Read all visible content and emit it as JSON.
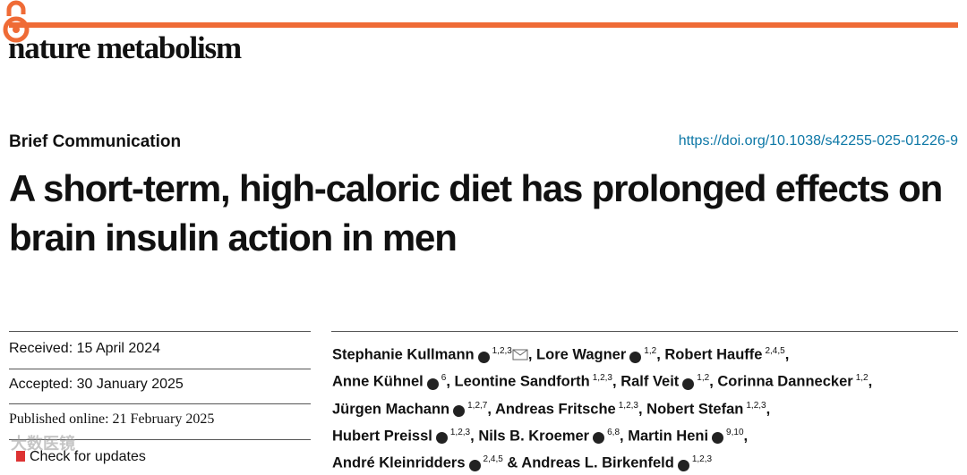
{
  "header": {
    "journal": "nature metabolism"
  },
  "article": {
    "type": "Brief Communication",
    "doi": "https://doi.org/10.1038/s42255-025-01226-9",
    "title": "A short-term, high-caloric diet has prolonged effects on brain insulin action in men"
  },
  "dates": {
    "received": "Received: 15 April 2024",
    "accepted": "Accepted: 30 January 2025",
    "published": "Published online: 21 February 2025"
  },
  "updates": "Check for updates",
  "watermark": "大数医镜",
  "authors": {
    "lines": [
      [
        {
          "name": "Stephanie Kullmann",
          "orcid": true,
          "affiliations": "1,2,3",
          "email": true,
          "after": ","
        },
        {
          "name": "Lore Wagner",
          "orcid": true,
          "affiliations": "1,2",
          "after": ","
        },
        {
          "name": "Robert Hauffe",
          "orcid": false,
          "affiliations": "2,4,5",
          "after": ","
        }
      ],
      [
        {
          "name": "Anne Kühnel",
          "orcid": true,
          "affiliations": "6",
          "after": ","
        },
        {
          "name": "Leontine Sandforth",
          "orcid": false,
          "affiliations": "1,2,3",
          "after": ","
        },
        {
          "name": "Ralf Veit",
          "orcid": true,
          "affiliations": "1,2",
          "after": ","
        },
        {
          "name": "Corinna Dannecker",
          "orcid": false,
          "affiliations": "1,2",
          "after": ","
        }
      ],
      [
        {
          "name": "Jürgen Machann",
          "orcid": true,
          "affiliations": "1,2,7",
          "after": ","
        },
        {
          "name": "Andreas Fritsche",
          "orcid": false,
          "affiliations": "1,2,3",
          "after": ","
        },
        {
          "name": "Nobert Stefan",
          "orcid": false,
          "affiliations": "1,2,3",
          "after": ","
        }
      ],
      [
        {
          "name": "Hubert Preissl",
          "orcid": true,
          "affiliations": "1,2,3",
          "after": ","
        },
        {
          "name": "Nils B. Kroemer",
          "orcid": true,
          "affiliations": "6,8",
          "after": ","
        },
        {
          "name": "Martin Heni",
          "orcid": true,
          "affiliations": "9,10",
          "after": ","
        }
      ],
      [
        {
          "name": "André Kleinridders",
          "orcid": true,
          "affiliations": "2,4,5",
          "after": " &"
        },
        {
          "name": "Andreas L. Birkenfeld",
          "orcid": true,
          "affiliations": "1,2,3"
        }
      ]
    ]
  }
}
